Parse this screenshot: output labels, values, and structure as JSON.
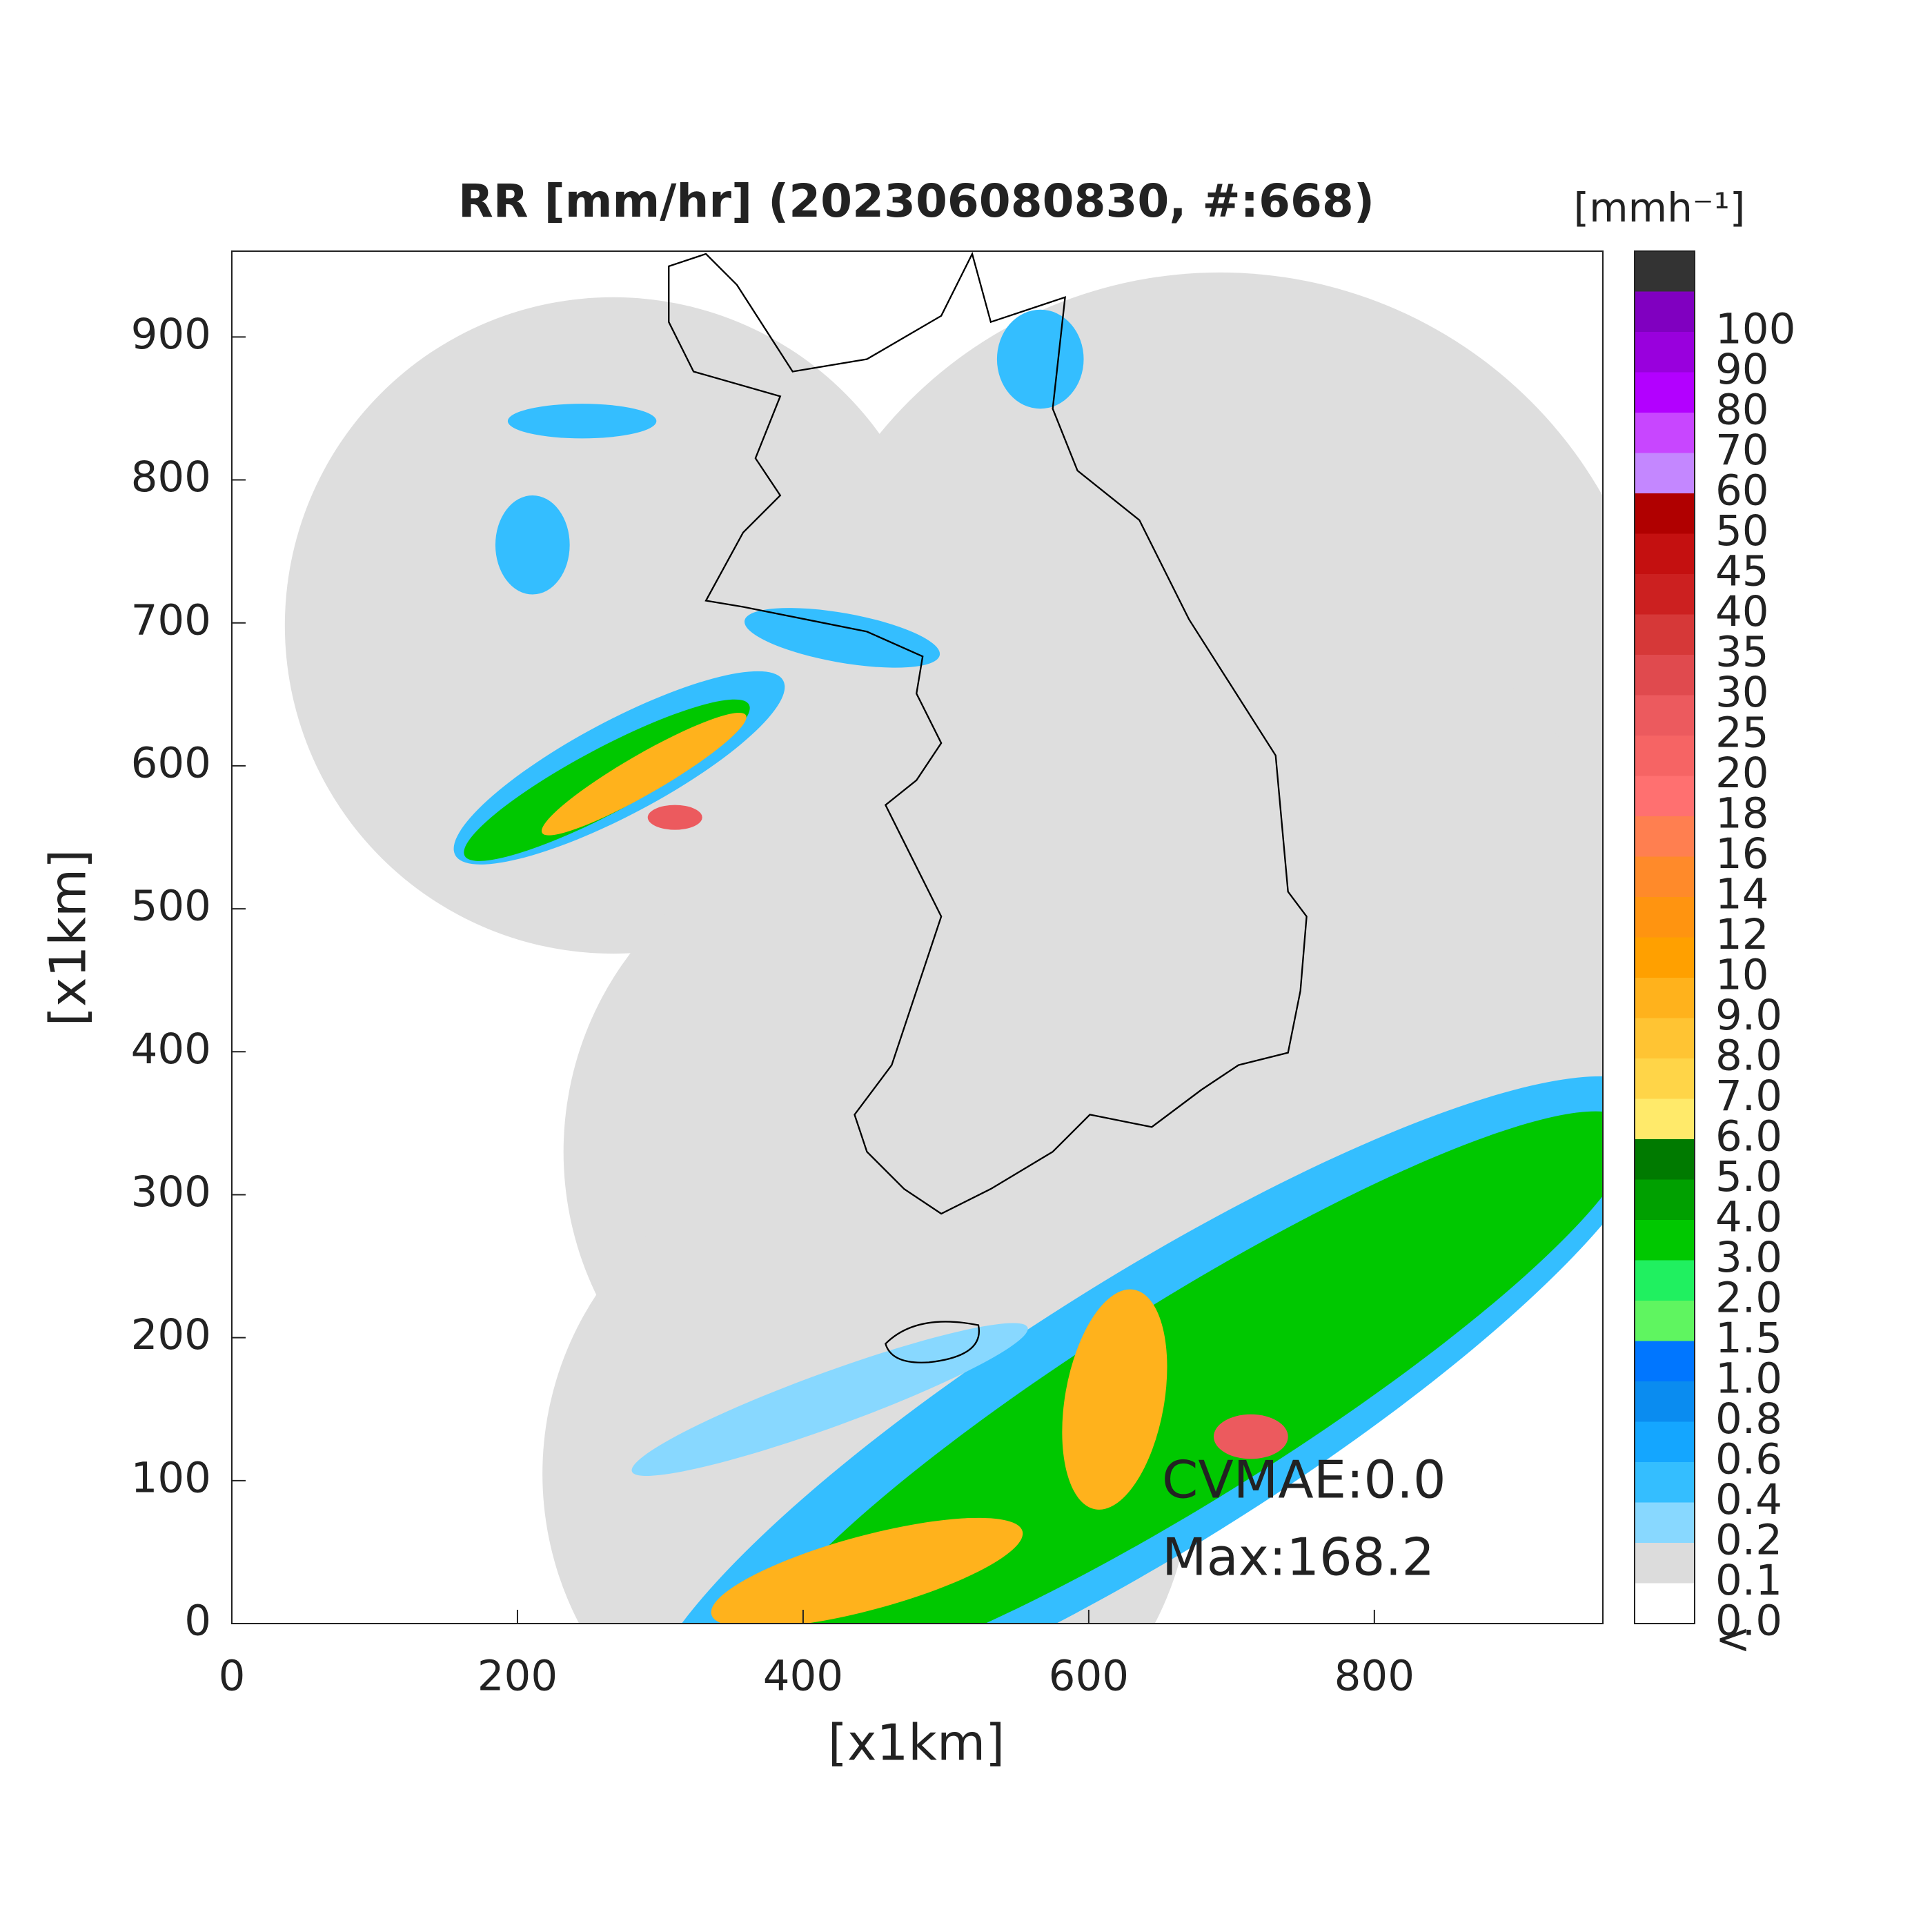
{
  "chart_data": {
    "type": "radar-map",
    "title": "RR [mm/hr] (202306080830, #:668)",
    "xlabel": "[x1km]",
    "ylabel": "[x1km]",
    "xlim": [
      0,
      960
    ],
    "ylim": [
      0,
      960
    ],
    "xticks": [
      0,
      200,
      400,
      600,
      800
    ],
    "yticks": [
      0,
      100,
      200,
      300,
      400,
      500,
      600,
      700,
      800,
      900
    ],
    "colorbar": {
      "label": "[mmh⁻¹]",
      "levels": [
        "<",
        "0.0",
        "0.1",
        "0.2",
        "0.4",
        "0.6",
        "0.8",
        "1.0",
        "1.5",
        "2.0",
        "3.0",
        "4.0",
        "5.0",
        "6.0",
        "7.0",
        "8.0",
        "9.0",
        "10",
        "12",
        "14",
        "16",
        "18",
        "20",
        "25",
        "30",
        "35",
        "40",
        "45",
        "50",
        "60",
        "70",
        "80",
        "90",
        "100"
      ],
      "colors": [
        "#ffffff",
        "#dcdcdc",
        "#88d8ff",
        "#34beff",
        "#14a6ff",
        "#0a8cf0",
        "#0076ff",
        "#5ff560",
        "#20f060",
        "#00c800",
        "#00a000",
        "#007a00",
        "#ffea6a",
        "#ffd548",
        "#ffc433",
        "#ffb21c",
        "#ffa000",
        "#ff9410",
        "#ff8a2a",
        "#ff7f50",
        "#ff7070",
        "#f66464",
        "#ec5a5e",
        "#e04a4e",
        "#d63838",
        "#cc2020",
        "#c41010",
        "#b00000",
        "#c487ff",
        "#c846ff",
        "#b300ff",
        "#9900dd",
        "#8000c0",
        "#333333"
      ]
    },
    "annotations": [
      "CVMAE:0.0",
      "Max:168.2"
    ]
  }
}
